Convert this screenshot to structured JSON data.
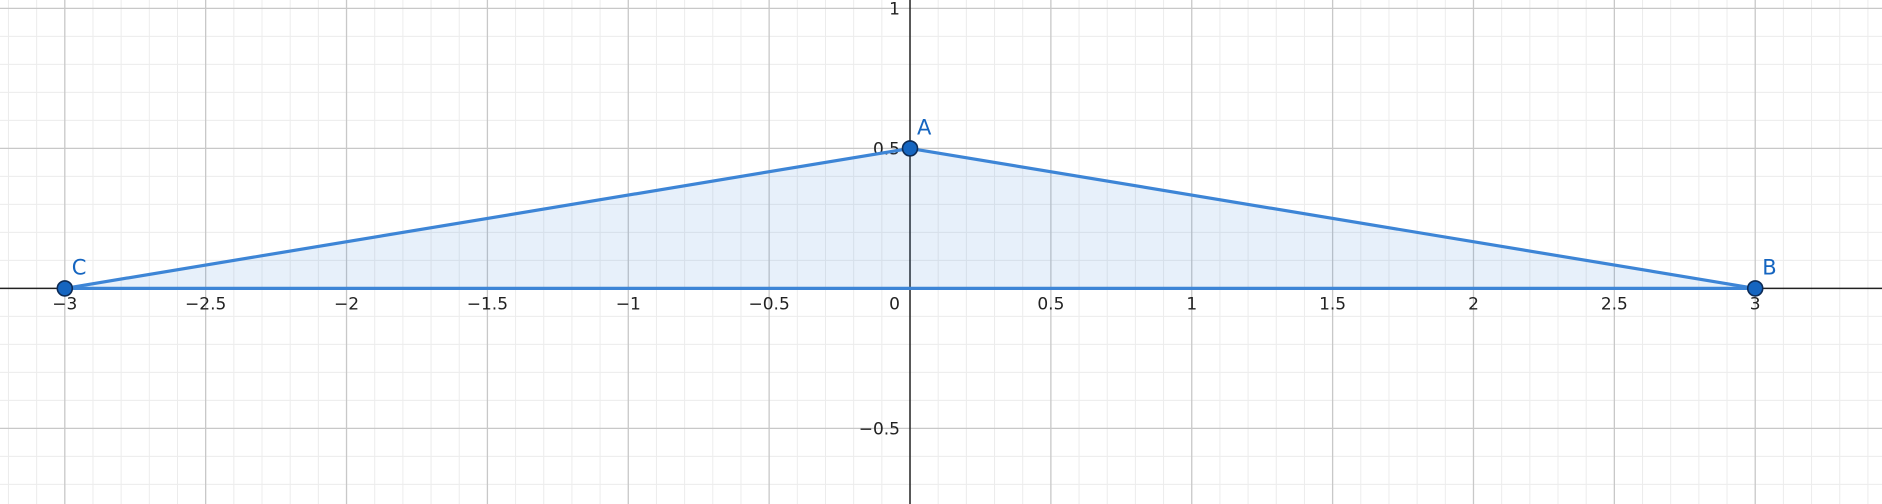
{
  "chart_data": {
    "type": "geometry",
    "xlim": [
      -3.23,
      3.45
    ],
    "ylim": [
      -0.77,
      1.03
    ],
    "major_step": 0.5,
    "minor_step": 0.1,
    "grid": true,
    "x_ticks": [
      {
        "value": -3,
        "label": "−3"
      },
      {
        "value": -2.5,
        "label": "−2.5"
      },
      {
        "value": -2,
        "label": "−2"
      },
      {
        "value": -1.5,
        "label": "−1.5"
      },
      {
        "value": -1,
        "label": "−1"
      },
      {
        "value": -0.5,
        "label": "−0.5"
      },
      {
        "value": 0,
        "label": "0"
      },
      {
        "value": 0.5,
        "label": "0.5"
      },
      {
        "value": 1,
        "label": "1"
      },
      {
        "value": 1.5,
        "label": "1.5"
      },
      {
        "value": 2,
        "label": "2"
      },
      {
        "value": 2.5,
        "label": "2.5"
      },
      {
        "value": 3,
        "label": "3"
      }
    ],
    "y_ticks": [
      {
        "value": 1,
        "label": "1"
      },
      {
        "value": 0.5,
        "label": "0.5"
      },
      {
        "value": -0.5,
        "label": "−0.5"
      }
    ],
    "points": [
      {
        "name": "A",
        "x": 0,
        "y": 0.5
      },
      {
        "name": "B",
        "x": 3,
        "y": 0
      },
      {
        "name": "C",
        "x": -3,
        "y": 0
      }
    ],
    "polygon": [
      "A",
      "B",
      "C"
    ],
    "colors": {
      "stroke": "#3d85d6",
      "fill": "#3d85d6",
      "point": "#1565c0",
      "axis": "#222222",
      "major_grid": "#c8c8c8",
      "minor_grid": "#ececec"
    }
  }
}
